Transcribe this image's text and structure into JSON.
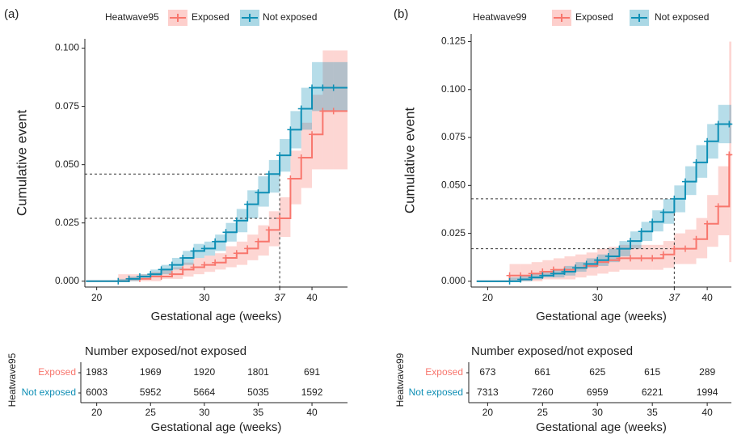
{
  "chart_data": [
    {
      "type": "step",
      "panel_label": "(a)",
      "y_label": "Cumulative event",
      "x_label": "Gestational age (weeks)",
      "legend_title": "Heatwave95",
      "xlim": [
        18.9,
        43.3
      ],
      "xticks": [
        20,
        30,
        37,
        40
      ],
      "ylim": [
        -0.0025,
        0.104
      ],
      "yticks": [
        {
          "value": 0,
          "label": "0.000"
        },
        {
          "value": 0.025,
          "label": "0.025"
        },
        {
          "value": 0.05,
          "label": "0.050"
        },
        {
          "value": 0.075,
          "label": "0.075"
        },
        {
          "value": 0.1,
          "label": "0.100"
        }
      ],
      "x": [
        19,
        22,
        23,
        24,
        25,
        26,
        27,
        28,
        29,
        30,
        31,
        32,
        33,
        34,
        35,
        36,
        37,
        38,
        39,
        40,
        41,
        42
      ],
      "series": [
        {
          "name": "Exposed",
          "color": "#f8766d",
          "values": [
            0,
            0,
            0.001,
            0.001,
            0.002,
            0.002,
            0.003,
            0.005,
            0.006,
            0.007,
            0.008,
            0.01,
            0.012,
            0.014,
            0.017,
            0.022,
            0.027,
            0.044,
            0.053,
            0.063,
            0.073,
            0.073
          ],
          "lower": [
            null,
            0,
            0,
            0,
            0,
            0.001,
            0.001,
            0.002,
            0.003,
            0.004,
            0.005,
            0.006,
            0.007,
            0.009,
            0.011,
            0.015,
            0.019,
            0.033,
            0.04,
            0.048,
            0.048,
            0.048
          ],
          "upper": [
            null,
            0.003,
            0.003,
            0.003,
            0.004,
            0.005,
            0.006,
            0.008,
            0.01,
            0.011,
            0.012,
            0.015,
            0.017,
            0.02,
            0.024,
            0.03,
            0.036,
            0.056,
            0.068,
            0.08,
            0.099,
            0.099
          ]
        },
        {
          "name": "Not exposed",
          "color": "#0e8fb5",
          "values": [
            0,
            0,
            0.001,
            0.002,
            0.003,
            0.005,
            0.007,
            0.01,
            0.013,
            0.014,
            0.017,
            0.021,
            0.026,
            0.033,
            0.038,
            0.046,
            0.054,
            0.065,
            0.074,
            0.083,
            0.083,
            0.083
          ],
          "lower": [
            null,
            0,
            0,
            0.001,
            0.002,
            0.003,
            0.005,
            0.007,
            0.01,
            0.011,
            0.013,
            0.017,
            0.021,
            0.027,
            0.032,
            0.038,
            0.047,
            0.057,
            0.065,
            0.073,
            0.073,
            0.073
          ],
          "upper": [
            null,
            0.001,
            0.002,
            0.003,
            0.005,
            0.007,
            0.01,
            0.013,
            0.016,
            0.017,
            0.02,
            0.025,
            0.031,
            0.039,
            0.045,
            0.052,
            0.061,
            0.073,
            0.083,
            0.094,
            0.094,
            0.094
          ]
        }
      ],
      "reference_lines": {
        "x": 37,
        "y": [
          0.046,
          0.027
        ]
      },
      "risk_table": {
        "title": "Number exposed/not exposed",
        "y_label": "Heatwave95",
        "x_label": "Gestational age (weeks)",
        "xticks": [
          20,
          25,
          30,
          35,
          40
        ],
        "rows": [
          {
            "name": "Exposed",
            "color": "#f8766d",
            "values": [
              1983,
              1969,
              1920,
              1801,
              691
            ]
          },
          {
            "name": "Not exposed",
            "color": "#0e8fb5",
            "values": [
              6003,
              5952,
              5664,
              5035,
              1592
            ]
          }
        ]
      }
    },
    {
      "type": "step",
      "panel_label": "(b)",
      "y_label": "Cumulative event",
      "x_label": "Gestational age (weeks)",
      "legend_title": "Heatwave99",
      "xlim": [
        18.5,
        42.2
      ],
      "xticks": [
        20,
        30,
        37,
        40
      ],
      "ylim": [
        -0.003,
        0.129
      ],
      "yticks": [
        {
          "value": 0,
          "label": "0.000"
        },
        {
          "value": 0.025,
          "label": "0.025"
        },
        {
          "value": 0.05,
          "label": "0.050"
        },
        {
          "value": 0.075,
          "label": "0.075"
        },
        {
          "value": 0.1,
          "label": "0.100"
        },
        {
          "value": 0.125,
          "label": "0.125"
        }
      ],
      "x": [
        19,
        22,
        23,
        24,
        25,
        26,
        27,
        28,
        29,
        30,
        31,
        32,
        33,
        34,
        35,
        36,
        37,
        38,
        39,
        40,
        41,
        42
      ],
      "series": [
        {
          "name": "Exposed",
          "color": "#f8766d",
          "values": [
            0,
            0.003,
            0.003,
            0.004,
            0.005,
            0.006,
            0.006,
            0.007,
            0.008,
            0.01,
            0.011,
            0.012,
            0.012,
            0.012,
            0.012,
            0.014,
            0.017,
            0.017,
            0.022,
            0.03,
            0.039,
            0.066
          ],
          "lower": [
            null,
            0,
            0,
            0,
            0.001,
            0.001,
            0.001,
            0.002,
            0.003,
            0.004,
            0.005,
            0.006,
            0.006,
            0.006,
            0.006,
            0.007,
            0.009,
            0.009,
            0.012,
            0.018,
            0.024,
            0.01
          ],
          "upper": [
            null,
            0.009,
            0.009,
            0.01,
            0.011,
            0.012,
            0.013,
            0.014,
            0.015,
            0.017,
            0.018,
            0.019,
            0.019,
            0.019,
            0.019,
            0.021,
            0.025,
            0.027,
            0.033,
            0.045,
            0.06,
            0.125
          ]
        },
        {
          "name": "Not exposed",
          "color": "#0e8fb5",
          "values": [
            0,
            0,
            0.001,
            0.002,
            0.003,
            0.004,
            0.005,
            0.007,
            0.009,
            0.011,
            0.013,
            0.017,
            0.021,
            0.026,
            0.031,
            0.036,
            0.043,
            0.052,
            0.062,
            0.073,
            0.082,
            0.082
          ],
          "lower": [
            null,
            0,
            0,
            0.001,
            0.002,
            0.002,
            0.003,
            0.005,
            0.007,
            0.008,
            0.01,
            0.013,
            0.017,
            0.021,
            0.026,
            0.03,
            0.036,
            0.045,
            0.054,
            0.064,
            0.072,
            0.072
          ],
          "upper": [
            null,
            0.002,
            0.003,
            0.004,
            0.005,
            0.006,
            0.008,
            0.01,
            0.012,
            0.014,
            0.017,
            0.021,
            0.026,
            0.031,
            0.037,
            0.043,
            0.05,
            0.06,
            0.071,
            0.082,
            0.092,
            0.092
          ]
        }
      ],
      "reference_lines": {
        "x": 37,
        "y": [
          0.043,
          0.017
        ]
      },
      "risk_table": {
        "title": "Number exposed/not exposed",
        "y_label": "Heatwave99",
        "x_label": "Gestational age (weeks)",
        "xticks": [
          20,
          25,
          30,
          35,
          40
        ],
        "rows": [
          {
            "name": "Exposed",
            "color": "#f8766d",
            "values": [
              673,
              661,
              625,
              615,
              289
            ]
          },
          {
            "name": "Not exposed",
            "color": "#0e8fb5",
            "values": [
              7313,
              7260,
              6959,
              6221,
              1994
            ]
          }
        ]
      }
    }
  ]
}
